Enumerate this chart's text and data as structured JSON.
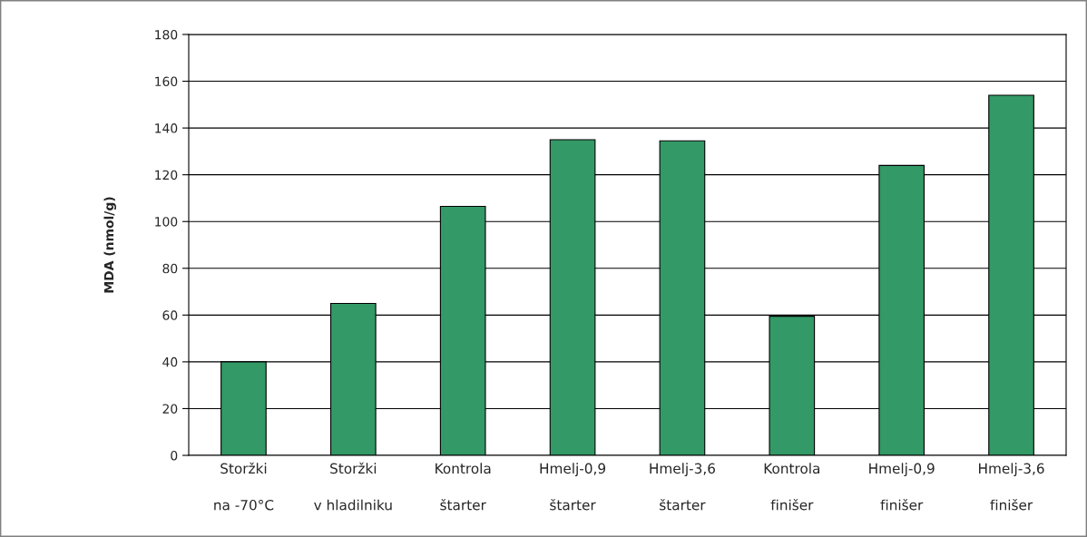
{
  "chart_data": {
    "type": "bar",
    "ylabel": "MDA (nmol/g)",
    "categories": [
      "Storžki\nna -70°C",
      "Storžki\nv hladilniku",
      "Kontrola\nštarter",
      "Hmelj-0,9\nštarter",
      "Hmelj-3,6\nštarter",
      "Kontrola\nfinišer",
      "Hmelj-0,9\nfinišer",
      "Hmelj-3,6\nfinišer"
    ],
    "values": [
      40,
      65,
      106.5,
      135,
      134.5,
      59.5,
      124,
      154
    ],
    "color": "#339966",
    "ylim": [
      0,
      180
    ],
    "yticks": [
      0,
      20,
      40,
      60,
      80,
      100,
      120,
      140,
      160,
      180
    ],
    "grid": "y"
  }
}
